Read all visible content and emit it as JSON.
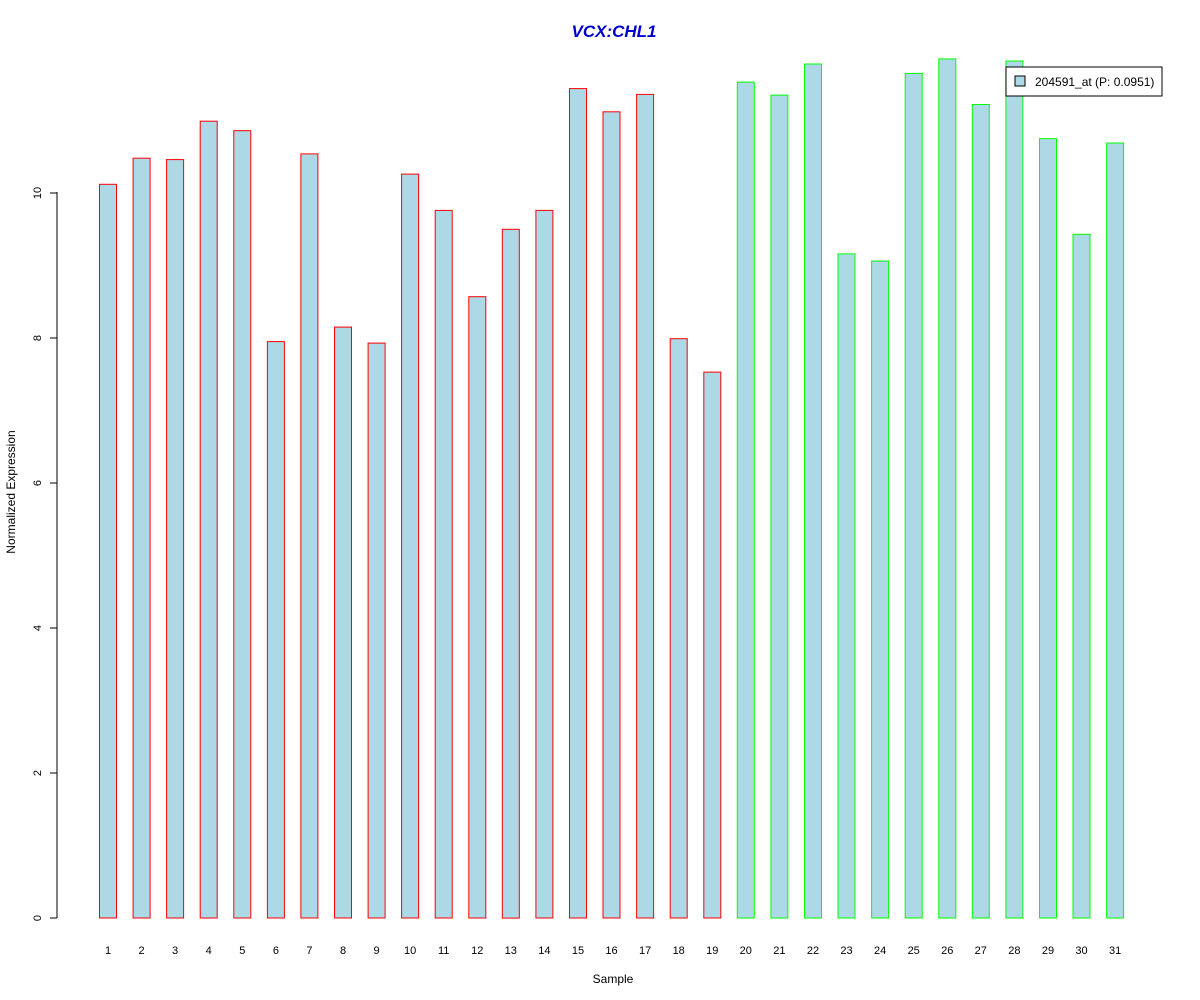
{
  "chart_data": {
    "type": "bar",
    "title": "VCX:CHL1",
    "xlabel": "Sample",
    "ylabel": "Normalized Expression",
    "ylim": [
      0,
      11.9
    ],
    "yticks": [
      0,
      2,
      4,
      6,
      8,
      10
    ],
    "grid": false,
    "legend_position": "top-right",
    "fill_color": "#add8e6",
    "group_colors": {
      "group1": "#ff0000",
      "group2": "#00ff00"
    },
    "categories": [
      "1",
      "2",
      "3",
      "4",
      "5",
      "6",
      "7",
      "8",
      "9",
      "10",
      "11",
      "12",
      "13",
      "14",
      "15",
      "16",
      "17",
      "18",
      "19",
      "20",
      "21",
      "22",
      "23",
      "24",
      "25",
      "26",
      "27",
      "28",
      "29",
      "30",
      "31"
    ],
    "groups": [
      "group1",
      "group1",
      "group1",
      "group1",
      "group1",
      "group1",
      "group1",
      "group1",
      "group1",
      "group1",
      "group1",
      "group1",
      "group1",
      "group1",
      "group1",
      "group1",
      "group1",
      "group1",
      "group1",
      "group2",
      "group2",
      "group2",
      "group2",
      "group2",
      "group2",
      "group2",
      "group2",
      "group2",
      "group2",
      "group2",
      "group2"
    ],
    "series": [
      {
        "name": "204591_at (P: 0.0951)",
        "values": [
          10.12,
          10.48,
          10.46,
          10.99,
          10.86,
          7.95,
          10.54,
          8.15,
          7.93,
          10.26,
          9.76,
          8.57,
          9.5,
          9.76,
          11.44,
          11.12,
          11.36,
          7.99,
          7.53,
          11.53,
          11.35,
          11.78,
          9.16,
          9.06,
          11.65,
          11.85,
          11.22,
          11.82,
          10.75,
          9.43,
          10.69
        ]
      }
    ]
  }
}
